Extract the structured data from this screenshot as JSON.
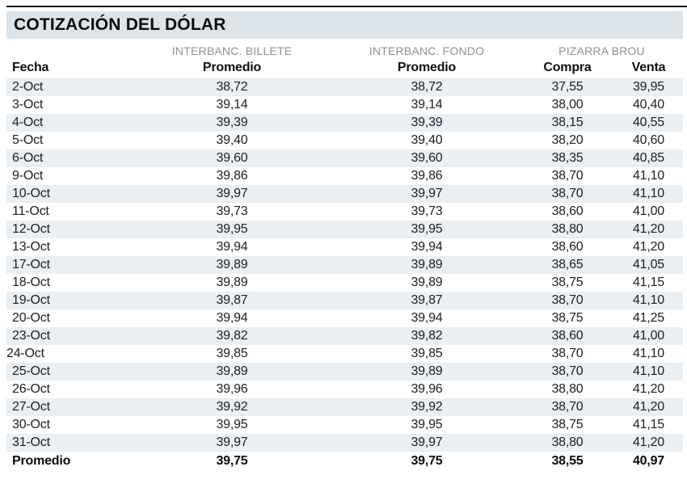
{
  "title_bar": {
    "title": "COTIZACIÓN DEL DÓLAR"
  },
  "chart_data": {
    "type": "table",
    "title": "COTIZACIÓN DEL DÓLAR",
    "column_groups": [
      "INTERBANC. BILLETE",
      "INTERBANC. FONDO",
      "PIZARRA BROU"
    ],
    "columns": [
      "Fecha",
      "Promedio",
      "Promedio",
      "Compra",
      "Venta"
    ],
    "rows": [
      [
        "2-Oct",
        "38,72",
        "38,72",
        "37,55",
        "39,95"
      ],
      [
        "3-Oct",
        "39,14",
        "39,14",
        "38,00",
        "40,40"
      ],
      [
        "4-Oct",
        "39,39",
        "39,39",
        "38,15",
        "40,55"
      ],
      [
        "5-Oct",
        "39,40",
        "39,40",
        "38,20",
        "40,60"
      ],
      [
        "6-Oct",
        "39,60",
        "39,60",
        "38,35",
        "40,85"
      ],
      [
        "9-Oct",
        "39,86",
        "39,86",
        "38,70",
        "41,10"
      ],
      [
        "10-Oct",
        "39,97",
        "39,97",
        "38,70",
        "41,10"
      ],
      [
        "11-Oct",
        "39,73",
        "39,73",
        "38,60",
        "41,00"
      ],
      [
        "12-Oct",
        "39,95",
        "39,95",
        "38,80",
        "41,20"
      ],
      [
        "13-Oct",
        "39,94",
        "39,94",
        "38,60",
        "41,20"
      ],
      [
        "17-Oct",
        "39,89",
        "39,89",
        "38,65",
        "41,05"
      ],
      [
        "18-Oct",
        "39,89",
        "39,89",
        "38,75",
        "41,15"
      ],
      [
        "19-Oct",
        "39,87",
        "39,87",
        "38,70",
        "41,10"
      ],
      [
        "20-Oct",
        "39,94",
        "39,94",
        "38,75",
        "41,25"
      ],
      [
        "23-Oct",
        "39,82",
        "39,82",
        "38,60",
        "41,00"
      ],
      [
        "24-Oct",
        "39,85",
        "39,85",
        "38,70",
        "41,10"
      ],
      [
        "25-Oct",
        "39,89",
        "39,89",
        "38,70",
        "41,10"
      ],
      [
        "26-Oct",
        "39,96",
        "39,96",
        "38,80",
        "41,20"
      ],
      [
        "27-Oct",
        "39,92",
        "39,92",
        "38,70",
        "41,20"
      ],
      [
        "30-Oct",
        "39,95",
        "39,95",
        "38,75",
        "41,15"
      ],
      [
        "31-Oct",
        "39,97",
        "39,97",
        "38,80",
        "41,20"
      ]
    ],
    "summary_row": [
      "Promedio",
      "39,75",
      "39,75",
      "38,55",
      "40,97"
    ]
  },
  "colors": {
    "title_band": "#dce4ea",
    "row_stripe": "#e9eff3",
    "group_header_text": "#8d9296",
    "top_rule": "#161616"
  }
}
